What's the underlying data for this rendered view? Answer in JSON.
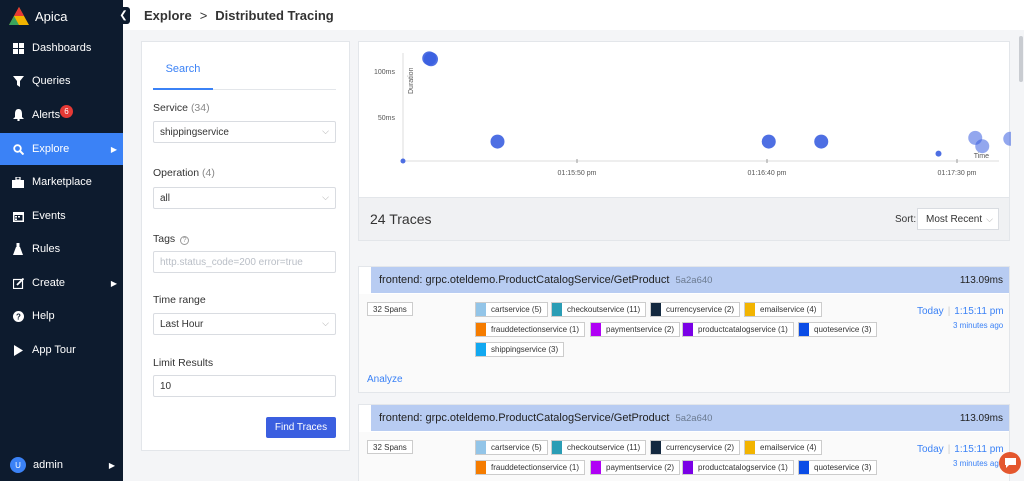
{
  "app": {
    "name": "Apica"
  },
  "sidebar": {
    "items": [
      {
        "label": "Dashboards",
        "icon": "grid-icon"
      },
      {
        "label": "Queries",
        "icon": "funnel-icon"
      },
      {
        "label": "Alerts",
        "icon": "bell-icon",
        "badge": "6"
      },
      {
        "label": "Explore",
        "icon": "search-icon",
        "active": true
      },
      {
        "label": "Marketplace",
        "icon": "briefcase-icon"
      },
      {
        "label": "Events",
        "icon": "calendar-icon"
      },
      {
        "label": "Rules",
        "icon": "flask-icon"
      },
      {
        "label": "Create",
        "icon": "edit-icon"
      },
      {
        "label": "Help",
        "icon": "help-icon"
      },
      {
        "label": "App Tour",
        "icon": "play-icon"
      }
    ],
    "user": {
      "initial": "U",
      "name": "admin"
    }
  },
  "breadcrumb": {
    "parent": "Explore",
    "separator": ">",
    "current": "Distributed Tracing"
  },
  "search": {
    "tab_label": "Search",
    "service_label": "Service",
    "service_count": "(34)",
    "service_value": "shippingservice",
    "operation_label": "Operation",
    "operation_count": "(4)",
    "operation_value": "all",
    "tags_label": "Tags",
    "tags_placeholder": "http.status_code=200 error=true",
    "time_range_label": "Time range",
    "time_range_value": "Last Hour",
    "limit_label": "Limit Results",
    "limit_value": "10",
    "find_button": "Find Traces"
  },
  "chart_data": {
    "type": "scatter",
    "ylabel": "Duration",
    "xlabel": "Time",
    "y_ticks": [
      "100ms",
      "50ms"
    ],
    "x_ticks": [
      "01:15:50 pm",
      "01:16:40 pm",
      "01:17:30 pm"
    ],
    "points": [
      {
        "t": 0,
        "y": 0
      },
      {
        "t": 21.0,
        "y": 111
      },
      {
        "t": 22.4,
        "y": 110
      },
      {
        "t": 75.6,
        "y": 21
      },
      {
        "t": 292.6,
        "y": 21
      },
      {
        "t": 334.6,
        "y": 21
      },
      {
        "t": 428.4,
        "y": 8
      },
      {
        "t": 457.8,
        "y": 25
      },
      {
        "t": 463.4,
        "y": 16
      },
      {
        "t": 485.8,
        "y": 24
      }
    ],
    "series_color": "#3b5fe0"
  },
  "traces": {
    "count_label": "24 Traces",
    "sort_label": "Sort:",
    "sort_value": "Most Recent",
    "items": [
      {
        "title": "frontend: grpc.oteldemo.ProductCatalogService/GetProduct",
        "trace_id": "5a2a640",
        "duration": "113.09ms",
        "spans": "32 Spans",
        "services": [
          {
            "name": "cartservice (5)",
            "color": "#93c5e8"
          },
          {
            "name": "checkoutservice (11)",
            "color": "#2a9db5"
          },
          {
            "name": "currencyservice (2)",
            "color": "#13283f"
          },
          {
            "name": "emailservice (4)",
            "color": "#f2b400"
          },
          {
            "name": "frauddetectionservice (1)",
            "color": "#f57c00"
          },
          {
            "name": "paymentservice (2)",
            "color": "#b000f5"
          },
          {
            "name": "productcatalogservice (1)",
            "color": "#7a00e6"
          },
          {
            "name": "quoteservice (3)",
            "color": "#0a4ce6"
          },
          {
            "name": "shippingservice (3)",
            "color": "#12a8f0"
          }
        ],
        "day": "Today",
        "time": "1:15:11 pm",
        "ago": "3 minutes ago",
        "analyze": "Analyze"
      },
      {
        "title": "frontend: grpc.oteldemo.ProductCatalogService/GetProduct",
        "trace_id": "5a2a640",
        "duration": "113.09ms",
        "spans": "32 Spans",
        "services": [
          {
            "name": "cartservice (5)",
            "color": "#93c5e8"
          },
          {
            "name": "checkoutservice (11)",
            "color": "#2a9db5"
          },
          {
            "name": "currencyservice (2)",
            "color": "#13283f"
          },
          {
            "name": "emailservice (4)",
            "color": "#f2b400"
          },
          {
            "name": "frauddetectionservice (1)",
            "color": "#f57c00"
          },
          {
            "name": "paymentservice (2)",
            "color": "#b000f5"
          },
          {
            "name": "productcatalogservice (1)",
            "color": "#7a00e6"
          },
          {
            "name": "quoteservice (3)",
            "color": "#0a4ce6"
          }
        ],
        "day": "Today",
        "time": "1:15:11 pm",
        "ago": "3 minutes ago"
      }
    ]
  }
}
